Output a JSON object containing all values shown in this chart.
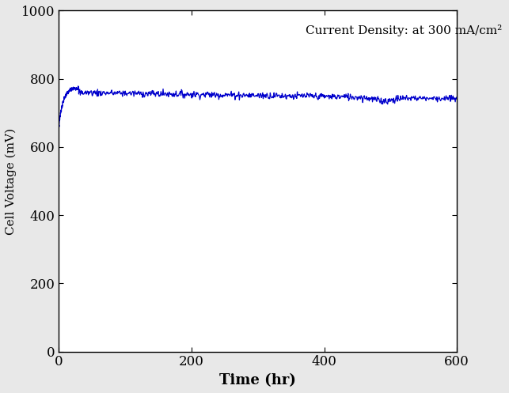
{
  "xlim": [
    0,
    600
  ],
  "ylim": [
    0,
    1000
  ],
  "xlabel": "Time (hr)",
  "ylabel": "Cell Voltage (mV)",
  "annotation": "Current Density: at 300 mA/cm²",
  "annotation_fontsize": 11,
  "line_color": "#0000CC",
  "background_color": "#e8e8e8",
  "plot_bg_color": "#ffffff",
  "xlabel_fontsize": 13,
  "ylabel_fontsize": 11,
  "tick_fontsize": 12,
  "xticks": [
    0,
    200,
    400,
    600
  ],
  "yticks": [
    0,
    200,
    400,
    600,
    800,
    1000
  ]
}
